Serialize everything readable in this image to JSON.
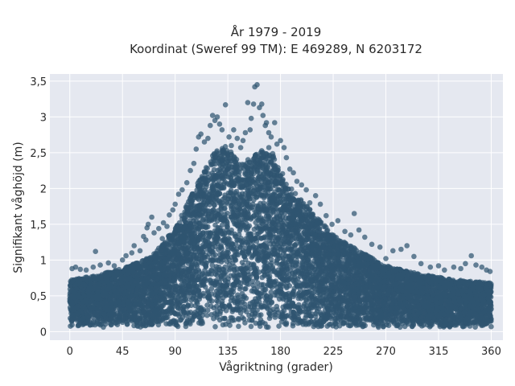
{
  "chart_data": {
    "type": "scatter",
    "title_line1": "År 1979 - 2019",
    "title_line2": "Koordinat (Sweref 99 TM): E 469289, N 6203172",
    "xlabel": "Vågriktning (grader)",
    "ylabel": "Signifikant våghöjd (m)",
    "xlim": [
      -17,
      370
    ],
    "ylim": [
      -0.12,
      3.6
    ],
    "xticks": [
      {
        "value": 0,
        "label": "0"
      },
      {
        "value": 45,
        "label": "45"
      },
      {
        "value": 90,
        "label": "90"
      },
      {
        "value": 135,
        "label": "135"
      },
      {
        "value": 180,
        "label": "180"
      },
      {
        "value": 225,
        "label": "225"
      },
      {
        "value": 270,
        "label": "270"
      },
      {
        "value": 315,
        "label": "315"
      },
      {
        "value": 360,
        "label": "360"
      }
    ],
    "yticks": [
      {
        "value": 0,
        "label": "0"
      },
      {
        "value": 0.5,
        "label": "0,5"
      },
      {
        "value": 1,
        "label": "1"
      },
      {
        "value": 1.5,
        "label": "1,5"
      },
      {
        "value": 2,
        "label": "2"
      },
      {
        "value": 2.5,
        "label": "2,5"
      },
      {
        "value": 3,
        "label": "3"
      },
      {
        "value": 3.5,
        "label": "3,5"
      }
    ],
    "grid": true,
    "colors": {
      "points": "#2f5570",
      "plot_bg": "#e5e8f0",
      "grid": "#ffffff",
      "paper": "#ffffff"
    },
    "envelope": {
      "description_of_max_wave_height_by_direction": "upper edge of dense point cloud",
      "direction": [
        0,
        20,
        45,
        70,
        90,
        110,
        125,
        135,
        145,
        160,
        170,
        185,
        200,
        225,
        250,
        270,
        300,
        330,
        360
      ],
      "max_height": [
        0.72,
        0.78,
        0.88,
        1.05,
        1.45,
        2.1,
        2.55,
        2.6,
        2.35,
        2.5,
        2.6,
        2.1,
        1.8,
        1.35,
        1.1,
        0.92,
        0.8,
        0.72,
        0.68
      ]
    },
    "highlighted_points": [
      {
        "x": 2,
        "y": 0.88
      },
      {
        "x": 5,
        "y": 0.9
      },
      {
        "x": 9,
        "y": 0.87
      },
      {
        "x": 14,
        "y": 0.86
      },
      {
        "x": 20,
        "y": 0.9
      },
      {
        "x": 22,
        "y": 1.12
      },
      {
        "x": 26,
        "y": 0.93
      },
      {
        "x": 33,
        "y": 0.96
      },
      {
        "x": 38,
        "y": 0.92
      },
      {
        "x": 45,
        "y": 1.0
      },
      {
        "x": 48,
        "y": 1.06
      },
      {
        "x": 53,
        "y": 1.1
      },
      {
        "x": 55,
        "y": 1.2
      },
      {
        "x": 60,
        "y": 1.13
      },
      {
        "x": 63,
        "y": 1.33
      },
      {
        "x": 65,
        "y": 1.28
      },
      {
        "x": 66,
        "y": 1.45
      },
      {
        "x": 67,
        "y": 1.5
      },
      {
        "x": 70,
        "y": 1.6
      },
      {
        "x": 72,
        "y": 1.38
      },
      {
        "x": 76,
        "y": 1.44
      },
      {
        "x": 79,
        "y": 1.3
      },
      {
        "x": 80,
        "y": 1.52
      },
      {
        "x": 83,
        "y": 1.47
      },
      {
        "x": 85,
        "y": 1.63
      },
      {
        "x": 88,
        "y": 1.7
      },
      {
        "x": 90,
        "y": 1.78
      },
      {
        "x": 93,
        "y": 1.92
      },
      {
        "x": 96,
        "y": 1.98
      },
      {
        "x": 100,
        "y": 2.08
      },
      {
        "x": 103,
        "y": 2.25
      },
      {
        "x": 106,
        "y": 2.35
      },
      {
        "x": 108,
        "y": 2.55
      },
      {
        "x": 110,
        "y": 2.72
      },
      {
        "x": 112,
        "y": 2.76
      },
      {
        "x": 115,
        "y": 2.65
      },
      {
        "x": 118,
        "y": 2.7
      },
      {
        "x": 120,
        "y": 2.88
      },
      {
        "x": 122,
        "y": 3.02
      },
      {
        "x": 124,
        "y": 2.95
      },
      {
        "x": 126,
        "y": 3.0
      },
      {
        "x": 128,
        "y": 2.9
      },
      {
        "x": 130,
        "y": 2.82
      },
      {
        "x": 133,
        "y": 3.17
      },
      {
        "x": 136,
        "y": 2.72
      },
      {
        "x": 138,
        "y": 2.6
      },
      {
        "x": 140,
        "y": 2.82
      },
      {
        "x": 143,
        "y": 2.7
      },
      {
        "x": 146,
        "y": 2.57
      },
      {
        "x": 148,
        "y": 2.67
      },
      {
        "x": 150,
        "y": 2.78
      },
      {
        "x": 152,
        "y": 3.2
      },
      {
        "x": 154,
        "y": 2.82
      },
      {
        "x": 155,
        "y": 2.98
      },
      {
        "x": 157,
        "y": 3.18
      },
      {
        "x": 158,
        "y": 3.42
      },
      {
        "x": 160,
        "y": 3.45
      },
      {
        "x": 162,
        "y": 3.13
      },
      {
        "x": 164,
        "y": 3.18
      },
      {
        "x": 165,
        "y": 3.02
      },
      {
        "x": 167,
        "y": 2.88
      },
      {
        "x": 168,
        "y": 2.92
      },
      {
        "x": 170,
        "y": 2.78
      },
      {
        "x": 172,
        "y": 2.72
      },
      {
        "x": 175,
        "y": 2.92
      },
      {
        "x": 177,
        "y": 2.62
      },
      {
        "x": 180,
        "y": 2.67
      },
      {
        "x": 183,
        "y": 2.57
      },
      {
        "x": 185,
        "y": 2.43
      },
      {
        "x": 188,
        "y": 2.27
      },
      {
        "x": 191,
        "y": 2.22
      },
      {
        "x": 194,
        "y": 2.1
      },
      {
        "x": 198,
        "y": 2.05
      },
      {
        "x": 202,
        "y": 1.98
      },
      {
        "x": 205,
        "y": 1.8
      },
      {
        "x": 210,
        "y": 1.9
      },
      {
        "x": 214,
        "y": 1.78
      },
      {
        "x": 219,
        "y": 1.62
      },
      {
        "x": 224,
        "y": 1.5
      },
      {
        "x": 229,
        "y": 1.55
      },
      {
        "x": 235,
        "y": 1.4
      },
      {
        "x": 240,
        "y": 1.35
      },
      {
        "x": 243,
        "y": 1.65
      },
      {
        "x": 247,
        "y": 1.42
      },
      {
        "x": 252,
        "y": 1.32
      },
      {
        "x": 258,
        "y": 1.22
      },
      {
        "x": 265,
        "y": 1.18
      },
      {
        "x": 270,
        "y": 1.02
      },
      {
        "x": 276,
        "y": 1.13
      },
      {
        "x": 283,
        "y": 1.15
      },
      {
        "x": 288,
        "y": 1.2
      },
      {
        "x": 294,
        "y": 1.05
      },
      {
        "x": 300,
        "y": 0.95
      },
      {
        "x": 308,
        "y": 0.9
      },
      {
        "x": 315,
        "y": 0.92
      },
      {
        "x": 320,
        "y": 0.86
      },
      {
        "x": 328,
        "y": 0.9
      },
      {
        "x": 334,
        "y": 0.88
      },
      {
        "x": 338,
        "y": 0.95
      },
      {
        "x": 343,
        "y": 1.06
      },
      {
        "x": 347,
        "y": 0.93
      },
      {
        "x": 352,
        "y": 0.9
      },
      {
        "x": 356,
        "y": 0.86
      },
      {
        "x": 359,
        "y": 0.84
      }
    ]
  }
}
